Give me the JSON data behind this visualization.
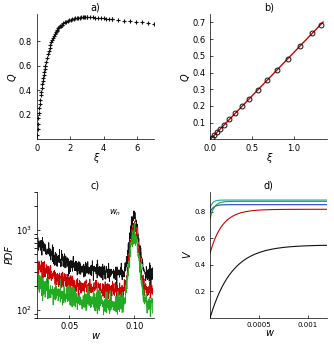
{
  "panel_a": {
    "label": "a)",
    "xlabel": "ξ",
    "ylabel": "Q",
    "xlim": [
      0,
      7
    ],
    "ylim": [
      0,
      1.05
    ],
    "xticks": [
      0,
      2,
      4,
      6
    ],
    "yticks": [
      0.2,
      0.4,
      0.6,
      0.8
    ]
  },
  "panel_b": {
    "label": "b)",
    "xlabel": "ξ",
    "ylabel": "Q",
    "xlim": [
      0,
      1.4
    ],
    "ylim": [
      0,
      0.75
    ],
    "xticks": [
      0,
      0.5,
      1.0
    ],
    "yticks": [
      0.1,
      0.2,
      0.3,
      0.4,
      0.5,
      0.6,
      0.7
    ]
  },
  "panel_c": {
    "label": "c)",
    "xlabel": "w",
    "ylabel": "PDF",
    "xlim": [
      0.025,
      0.115
    ],
    "ylim_log": [
      80,
      2000
    ],
    "xticks": [
      0.05,
      0.1
    ],
    "wn_label": "w_n"
  },
  "panel_d": {
    "label": "d)",
    "xlabel": "w",
    "ylabel": "V",
    "xlim": [
      0,
      0.0012
    ],
    "ylim": [
      0,
      0.95
    ],
    "xticks": [
      0.0005,
      0.001
    ],
    "yticks": [
      0.2,
      0.4,
      0.6,
      0.8
    ]
  },
  "colors": {
    "black": "#111111",
    "red": "#cc0000",
    "green": "#22aa22",
    "blue": "#2244cc",
    "cyan": "#11aaaa"
  }
}
